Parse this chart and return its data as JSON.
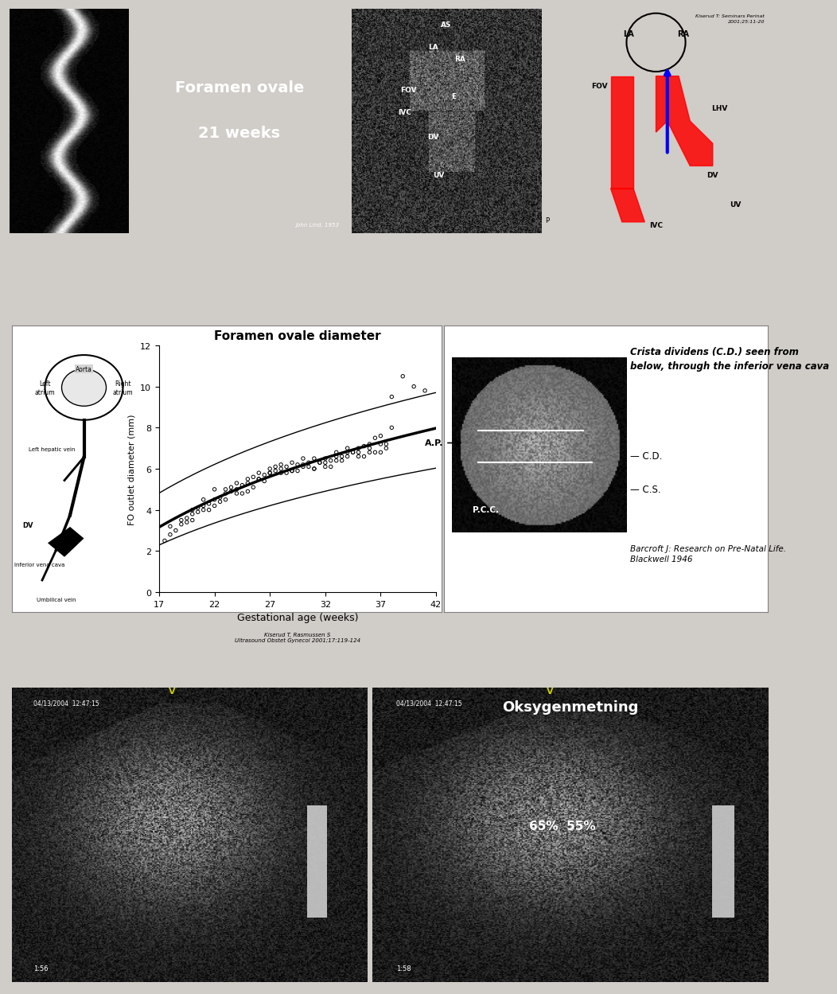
{
  "bg_color": "#d0ccc8",
  "panel1_title_line1": "Foramen ovale",
  "panel1_title_line2": "21 weeks",
  "panel2_title": "Foramen ovale diameter",
  "scatter_xlabel": "Gestational age (weeks)",
  "scatter_ylabel": "FO outlet diameter (mm)",
  "scatter_citation": "Kiserud T, Rasmussen S\nUltrasound Obstet Gynecol 2001;17:119-124",
  "scatter_xticks": [
    17,
    22,
    27,
    32,
    37,
    42
  ],
  "scatter_yticks": [
    0,
    2,
    4,
    6,
    8,
    10,
    12
  ],
  "scatter_ylim": [
    0,
    12
  ],
  "scatter_xlim": [
    17,
    42
  ],
  "crista_title": "Crista dividens (C.D.) seen from\nbelow, through the inferior vena cava",
  "crista_citation": "Barcroft J: Research on Pre-Natal Life.\nBlackwell 1946",
  "panel6_title": "Oksygenmetning",
  "panel6_text": "65%  55%",
  "scatter_data_x": [
    17.5,
    18.0,
    18.5,
    19.0,
    19.5,
    20.0,
    20.5,
    21.0,
    21.5,
    22.0,
    22.5,
    23.0,
    23.5,
    24.0,
    24.5,
    25.0,
    25.5,
    26.0,
    26.5,
    27.0,
    27.5,
    28.0,
    28.5,
    29.0,
    29.5,
    30.0,
    30.5,
    31.0,
    31.5,
    32.0,
    32.5,
    33.0,
    33.5,
    34.0,
    34.5,
    35.0,
    35.5,
    36.0,
    36.5,
    37.0,
    37.5,
    38.0,
    39.0,
    40.0,
    41.0,
    18.0,
    19.0,
    20.0,
    21.0,
    22.0,
    23.0,
    24.0,
    25.0,
    26.0,
    27.0,
    28.0,
    29.0,
    30.0,
    31.0,
    32.0,
    33.0,
    34.0,
    35.0,
    36.0,
    37.0,
    19.5,
    20.5,
    21.5,
    22.5,
    23.5,
    24.5,
    25.5,
    26.5,
    27.5,
    28.5,
    29.5,
    30.5,
    31.5,
    32.5,
    33.5,
    34.5,
    35.5,
    36.5,
    37.5,
    20.0,
    21.0,
    22.0,
    23.0,
    24.0,
    25.0,
    26.0,
    27.0,
    28.0,
    29.0,
    30.0,
    31.0,
    32.0,
    33.0,
    34.0,
    35.0,
    36.0,
    37.0,
    38.0
  ],
  "scatter_data_y": [
    2.5,
    2.8,
    3.0,
    3.3,
    3.4,
    3.8,
    4.1,
    4.2,
    4.3,
    4.5,
    4.6,
    5.0,
    5.1,
    5.3,
    5.2,
    5.5,
    5.6,
    5.8,
    5.7,
    6.0,
    6.1,
    6.2,
    6.1,
    6.3,
    6.2,
    6.5,
    6.3,
    6.5,
    6.3,
    6.5,
    6.4,
    6.8,
    6.6,
    7.0,
    6.8,
    7.0,
    7.1,
    7.2,
    7.5,
    7.6,
    7.2,
    9.5,
    10.5,
    10.0,
    9.8,
    3.2,
    3.5,
    4.0,
    4.5,
    5.0,
    4.8,
    5.0,
    5.3,
    5.5,
    5.8,
    6.0,
    5.9,
    6.2,
    6.0,
    6.3,
    6.6,
    6.8,
    6.8,
    7.0,
    7.2,
    3.6,
    3.9,
    4.0,
    4.4,
    4.9,
    4.8,
    5.1,
    5.4,
    5.9,
    5.8,
    5.9,
    6.1,
    6.3,
    6.1,
    6.4,
    6.8,
    6.6,
    6.8,
    7.0,
    3.5,
    4.0,
    4.2,
    4.5,
    4.8,
    4.9,
    5.5,
    5.8,
    5.8,
    5.9,
    6.1,
    6.0,
    6.1,
    6.4,
    6.6,
    6.6,
    6.8,
    6.8,
    8.0
  ],
  "mean_curve_x": [
    17,
    19,
    21,
    23,
    25,
    27,
    29,
    31,
    33,
    35,
    37,
    39,
    42
  ],
  "mean_curve_y": [
    2.8,
    3.5,
    4.3,
    5.0,
    5.5,
    6.0,
    6.3,
    6.5,
    6.7,
    6.8,
    7.0,
    7.3,
    8.0
  ],
  "upper_curve_x": [
    17,
    19,
    21,
    23,
    25,
    27,
    29,
    31,
    33,
    35,
    37,
    39,
    42
  ],
  "upper_curve_y": [
    4.2,
    5.2,
    6.0,
    6.8,
    7.3,
    7.8,
    8.0,
    8.2,
    8.4,
    8.6,
    8.8,
    9.0,
    9.5
  ],
  "lower_curve_x": [
    17,
    19,
    21,
    23,
    25,
    27,
    29,
    31,
    33,
    35,
    37,
    39,
    42
  ],
  "lower_curve_y": [
    1.8,
    2.5,
    3.2,
    3.8,
    4.2,
    4.6,
    4.8,
    5.0,
    5.1,
    5.2,
    5.3,
    5.4,
    5.8
  ],
  "citation1": "John Lind, 1953",
  "citation2": "Kiserud T: Seminars Perinat\n2001;25:11-20"
}
